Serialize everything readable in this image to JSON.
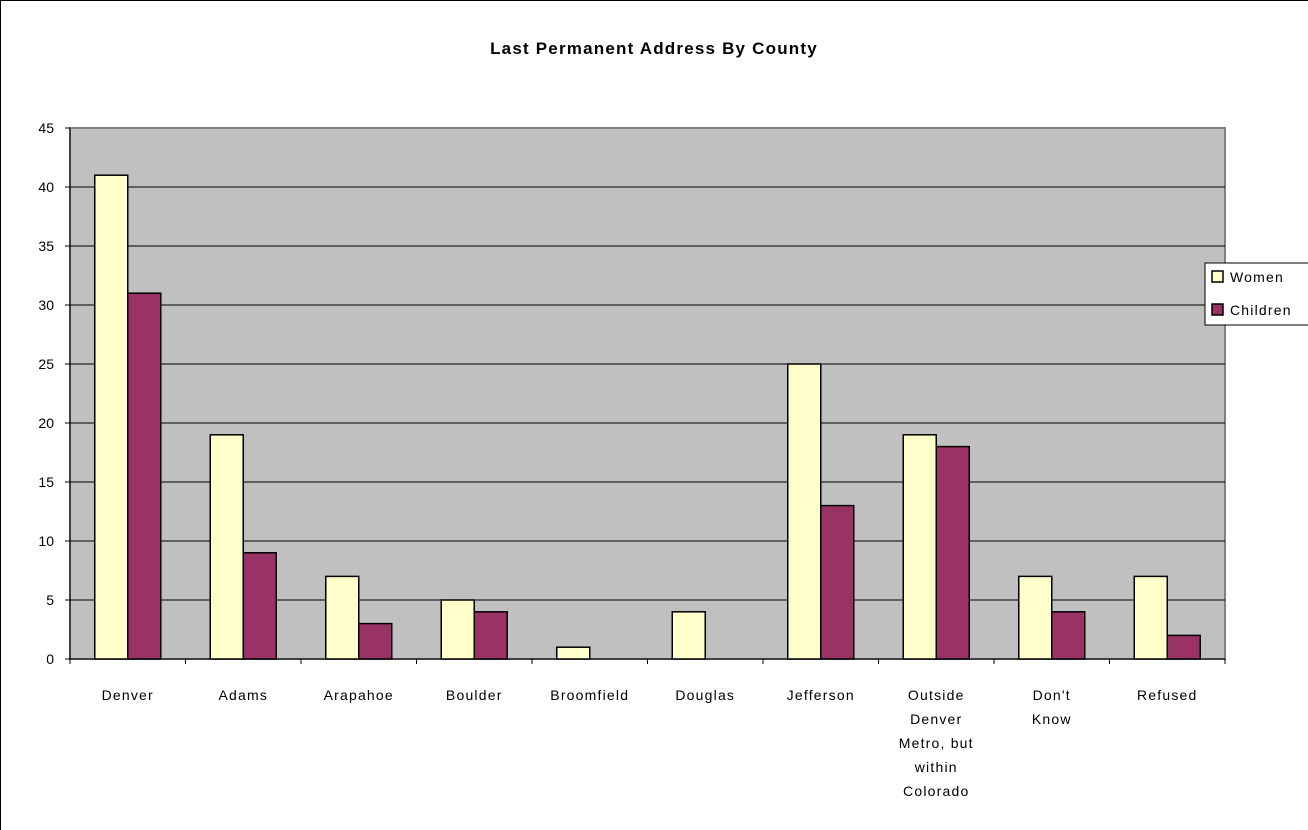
{
  "chart_data": {
    "type": "bar",
    "title": "Last Permanent Address By County",
    "xlabel": "",
    "ylabel": "",
    "ylim": [
      0,
      45
    ],
    "yticks": [
      0,
      5,
      10,
      15,
      20,
      25,
      30,
      35,
      40,
      45
    ],
    "grid": true,
    "legend_position": "right",
    "categories": [
      [
        "Denver"
      ],
      [
        "Adams"
      ],
      [
        "Arapahoe"
      ],
      [
        "Boulder"
      ],
      [
        "Broomfield"
      ],
      [
        "Douglas"
      ],
      [
        "Jefferson"
      ],
      [
        "Outside",
        "Denver",
        "Metro, but",
        "within",
        "Colorado"
      ],
      [
        "Don't",
        "Know"
      ],
      [
        "Refused"
      ]
    ],
    "series": [
      {
        "name": "Women",
        "color": "#ffffcc",
        "values": [
          41,
          19,
          7,
          5,
          1,
          4,
          25,
          19,
          7,
          7
        ]
      },
      {
        "name": "Children",
        "color": "#993366",
        "values": [
          31,
          9,
          3,
          4,
          0,
          0,
          13,
          18,
          4,
          2
        ]
      }
    ],
    "plot_background": "#c0c0c0"
  }
}
